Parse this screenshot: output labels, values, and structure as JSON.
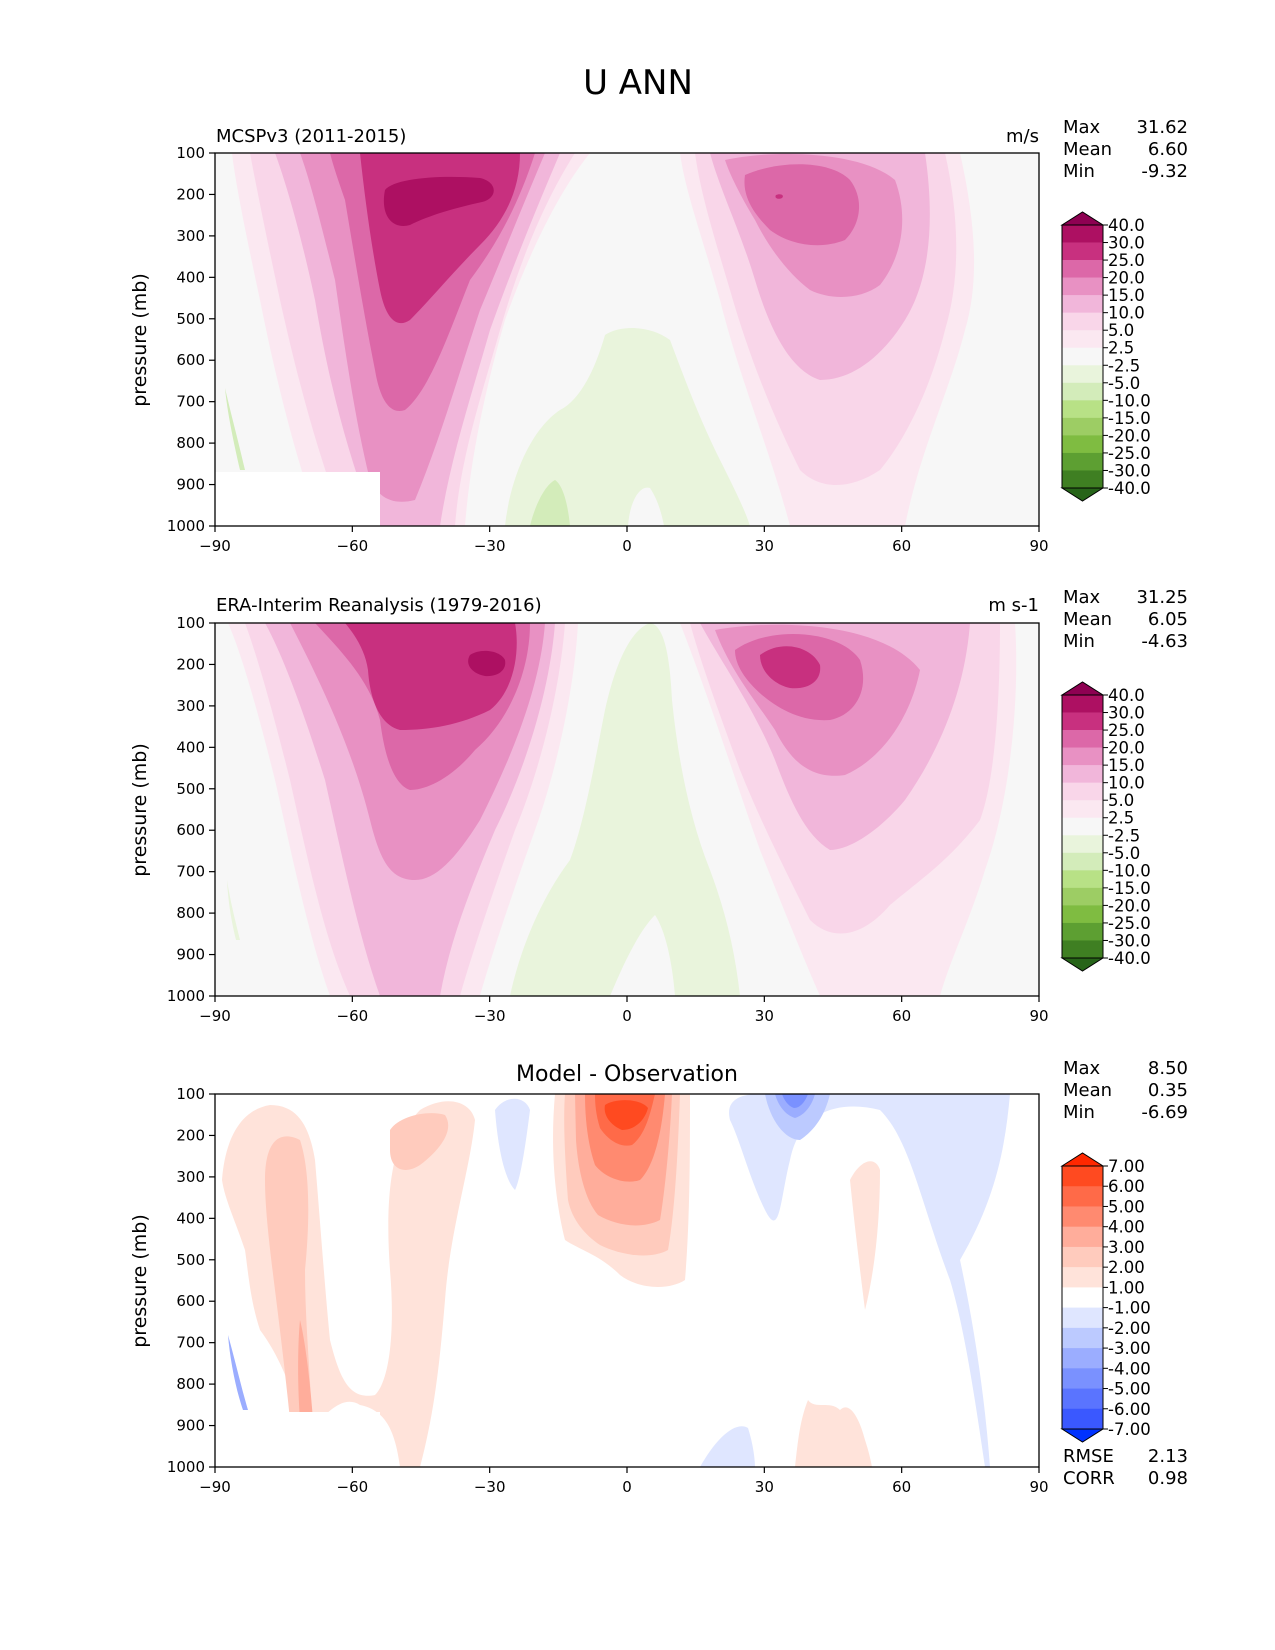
{
  "title": "U ANN",
  "chart_data": [
    {
      "type": "heatmap",
      "left_title": "MCSPv3 (2011-2015)",
      "units": "m/s",
      "ylabel": "pressure (mb)",
      "xlim": [
        -90,
        90
      ],
      "ylim": [
        1000,
        100
      ],
      "xticks": [
        "−90",
        "−60",
        "−30",
        "0",
        "30",
        "60",
        "90"
      ],
      "yticks": [
        "100",
        "200",
        "300",
        "400",
        "500",
        "600",
        "700",
        "800",
        "900",
        "1000"
      ],
      "stats": [
        {
          "label": "Max",
          "value": "31.62"
        },
        {
          "label": "Mean",
          "value": "6.60"
        },
        {
          "label": "Min",
          "value": "-9.32"
        }
      ],
      "colorbar": {
        "labels": [
          "40.0",
          "30.0",
          "25.0",
          "20.0",
          "15.0",
          "10.0",
          "5.0",
          "2.5",
          "-2.5",
          "-5.0",
          "-10.0",
          "-15.0",
          "-20.0",
          "-25.0",
          "-30.0",
          "-40.0"
        ],
        "over_color": "#8e0152",
        "under_color": "#276419",
        "colors": [
          "#ad1062",
          "#c8307f",
          "#dc68a8",
          "#e891c3",
          "#f1b6da",
          "#f9d6e9",
          "#fbe8f1",
          "#f7f7f7",
          "#e9f4dc",
          "#d3ecba",
          "#b8e186",
          "#9dcd64",
          "#7fbc41",
          "#5d9f32",
          "#3f7f22"
        ]
      },
      "field": {
        "description_levels_ms": "contour fill of annual mean zonal wind",
        "jets": [
          {
            "lat": -50,
            "pressure": 200,
            "peak": 31.62
          },
          {
            "lat": 35,
            "pressure": 210,
            "peak": 28
          }
        ],
        "easterly_min": {
          "lat": -17,
          "pressure": 920,
          "value": -9.32
        }
      }
    },
    {
      "type": "heatmap",
      "left_title": "ERA-Interim Reanalysis (1979-2016)",
      "units": "m s-1",
      "ylabel": "pressure (mb)",
      "xlim": [
        -90,
        90
      ],
      "ylim": [
        1000,
        100
      ],
      "xticks": [
        "−90",
        "−60",
        "−30",
        "0",
        "30",
        "60",
        "90"
      ],
      "yticks": [
        "100",
        "200",
        "300",
        "400",
        "500",
        "600",
        "700",
        "800",
        "900",
        "1000"
      ],
      "stats": [
        {
          "label": "Max",
          "value": "31.25"
        },
        {
          "label": "Mean",
          "value": "6.05"
        },
        {
          "label": "Min",
          "value": "-4.63"
        }
      ],
      "colorbar": {
        "labels": [
          "40.0",
          "30.0",
          "25.0",
          "20.0",
          "15.0",
          "10.0",
          "5.0",
          "2.5",
          "-2.5",
          "-5.0",
          "-10.0",
          "-15.0",
          "-20.0",
          "-25.0",
          "-30.0",
          "-40.0"
        ],
        "over_color": "#8e0152",
        "under_color": "#276419",
        "colors": [
          "#ad1062",
          "#c8307f",
          "#dc68a8",
          "#e891c3",
          "#f1b6da",
          "#f9d6e9",
          "#fbe8f1",
          "#f7f7f7",
          "#e9f4dc",
          "#d3ecba",
          "#b8e186",
          "#9dcd64",
          "#7fbc41",
          "#5d9f32",
          "#3f7f22"
        ]
      },
      "field": {
        "jets": [
          {
            "lat": -45,
            "pressure": 220,
            "peak": 31.25
          },
          {
            "lat": 35,
            "pressure": 200,
            "peak": 30
          }
        ],
        "easterly_min": {
          "lat": -5,
          "pressure": 500,
          "value": -4.63
        }
      }
    },
    {
      "type": "heatmap",
      "left_title": "",
      "center_title": "Model - Observation",
      "units": "",
      "ylabel": "pressure (mb)",
      "xlim": [
        -90,
        90
      ],
      "ylim": [
        1000,
        100
      ],
      "xticks": [
        "−90",
        "−60",
        "−30",
        "0",
        "30",
        "60",
        "90"
      ],
      "yticks": [
        "100",
        "200",
        "300",
        "400",
        "500",
        "600",
        "700",
        "800",
        "900",
        "1000"
      ],
      "stats": [
        {
          "label": "Max",
          "value": "8.50"
        },
        {
          "label": "Mean",
          "value": "0.35"
        },
        {
          "label": "Min",
          "value": "-6.69"
        }
      ],
      "bottom_stats": [
        {
          "label": "RMSE",
          "value": "2.13"
        },
        {
          "label": "CORR",
          "value": "0.98"
        }
      ],
      "colorbar": {
        "labels": [
          "7.00",
          "6.00",
          "5.00",
          "4.00",
          "3.00",
          "2.00",
          "1.00",
          "-1.00",
          "-2.00",
          "-3.00",
          "-4.00",
          "-5.00",
          "-6.00",
          "-7.00"
        ],
        "over_color": "#ff2800",
        "under_color": "#0032ff",
        "colors": [
          "#ff4a20",
          "#ff6a48",
          "#ff8a70",
          "#ffad9b",
          "#ffcbbd",
          "#ffe3da",
          "#ffffff",
          "#dfe6ff",
          "#bccaff",
          "#9badff",
          "#7a91ff",
          "#5a74ff",
          "#3a58ff"
        ]
      },
      "field": {
        "max": {
          "lat": 0,
          "pressure": 170,
          "value": 8.5
        },
        "min": {
          "lat": 36,
          "pressure": 120,
          "value": -6.69
        }
      }
    }
  ]
}
